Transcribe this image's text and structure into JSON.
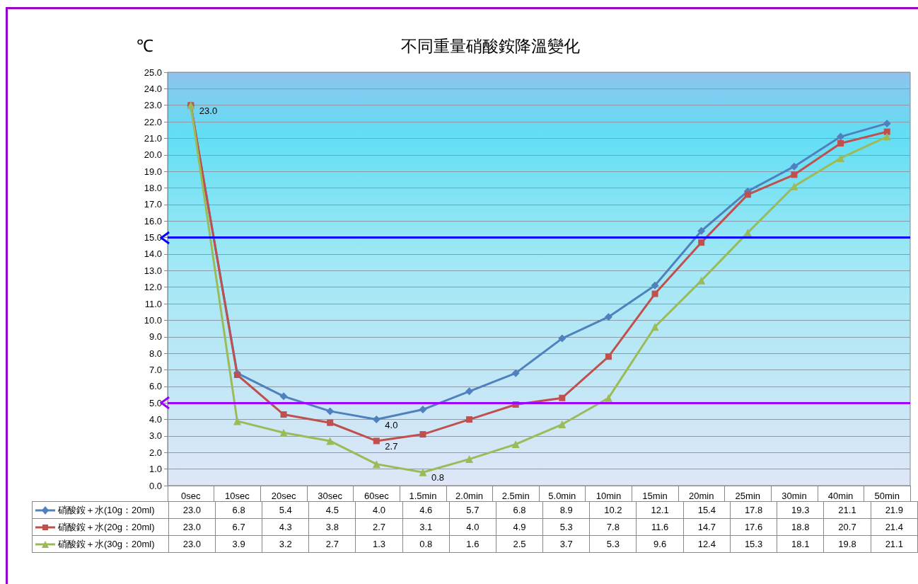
{
  "chart_data": {
    "type": "line",
    "title": "不同重量硝酸銨降溫變化",
    "ylabel": "℃",
    "categories": [
      "0sec",
      "10sec",
      "20sec",
      "30sec",
      "60sec",
      "1.5min",
      "2.0min",
      "2.5min",
      "5.0min",
      "10min",
      "15min",
      "20min",
      "25min",
      "30min",
      "40min",
      "50min"
    ],
    "series": [
      {
        "name": "硝酸銨＋水(10g：20ml)",
        "color": "#4f81bd",
        "marker": "diamond",
        "values": [
          23.0,
          6.8,
          5.4,
          4.5,
          4.0,
          4.6,
          5.7,
          6.8,
          8.9,
          10.2,
          12.1,
          15.4,
          17.8,
          19.3,
          21.1,
          21.9
        ],
        "value_labels": [
          "23.0",
          "6.8",
          "5.4",
          "4.5",
          "4.0",
          "4.6",
          "5.7",
          "6.8",
          "8.9",
          "10.2",
          "12.1",
          "15.4",
          "17.8",
          "19.3",
          "21.1",
          "21.9"
        ]
      },
      {
        "name": "硝酸銨＋水(20g：20ml)",
        "color": "#c0504d",
        "marker": "square",
        "values": [
          23.0,
          6.7,
          4.3,
          3.8,
          2.7,
          3.1,
          4.0,
          4.9,
          5.3,
          7.8,
          11.6,
          14.7,
          17.6,
          18.8,
          20.7,
          21.4
        ],
        "value_labels": [
          "23.0",
          "6.7",
          "4.3",
          "3.8",
          "2.7",
          "3.1",
          "4.0",
          "4.9",
          "5.3",
          "7.8",
          "11.6",
          "14.7",
          "17.6",
          "18.8",
          "20.7",
          "21.4"
        ]
      },
      {
        "name": "硝酸銨＋水(30g：20ml)",
        "color": "#9bbb59",
        "marker": "triangle",
        "values": [
          23.0,
          3.9,
          3.2,
          2.7,
          1.3,
          0.8,
          1.6,
          2.5,
          3.7,
          5.3,
          9.6,
          12.4,
          15.3,
          18.1,
          19.8,
          21.1
        ],
        "value_labels": [
          "23.0",
          "3.9",
          "3.2",
          "2.7",
          "1.3",
          "0.8",
          "1.6",
          "2.5",
          "3.7",
          "5.3",
          "9.6",
          "12.4",
          "15.3",
          "18.1",
          "19.8",
          "21.1"
        ]
      }
    ],
    "ylim": [
      0,
      25
    ],
    "yticks": [
      {
        "value": 0,
        "label": "0.0"
      },
      {
        "value": 1,
        "label": "1.0"
      },
      {
        "value": 2,
        "label": "2.0"
      },
      {
        "value": 3,
        "label": "3.0"
      },
      {
        "value": 4,
        "label": "4.0"
      },
      {
        "value": 5,
        "label": "5.0"
      },
      {
        "value": 6,
        "label": "6.0"
      },
      {
        "value": 7,
        "label": "7.0"
      },
      {
        "value": 8,
        "label": "8.0"
      },
      {
        "value": 9,
        "label": "9.0"
      },
      {
        "value": 10,
        "label": "10.0"
      },
      {
        "value": 11,
        "label": "11.0"
      },
      {
        "value": 12,
        "label": "12.0"
      },
      {
        "value": 13,
        "label": "13.0"
      },
      {
        "value": 14,
        "label": "14.0"
      },
      {
        "value": 15,
        "label": "15.0"
      },
      {
        "value": 16,
        "label": "16.0"
      },
      {
        "value": 17,
        "label": "17.0"
      },
      {
        "value": 18,
        "label": "18.0"
      },
      {
        "value": 19,
        "label": "19.0"
      },
      {
        "value": 20,
        "label": "20.0"
      },
      {
        "value": 21,
        "label": "21.0"
      },
      {
        "value": 22,
        "label": "22.0"
      },
      {
        "value": 23,
        "label": "23.0"
      },
      {
        "value": 24,
        "label": "24.0"
      },
      {
        "value": 25,
        "label": "25.0"
      }
    ],
    "grid": "y",
    "legend": "bottom",
    "ref_lines": [
      {
        "axis": "y",
        "value": 15,
        "color": "#0000ff",
        "label": null
      },
      {
        "axis": "y",
        "value": 5,
        "color": "#9900ff",
        "label": null
      }
    ],
    "annotations": [
      {
        "text": "23.0",
        "x": "0sec",
        "y": 23.0
      },
      {
        "text": "4.0",
        "x": "60sec",
        "y": 4.0
      },
      {
        "text": "2.7",
        "x": "60sec",
        "y": 2.7
      },
      {
        "text": "0.8",
        "x": "1.5min",
        "y": 0.8
      }
    ]
  }
}
